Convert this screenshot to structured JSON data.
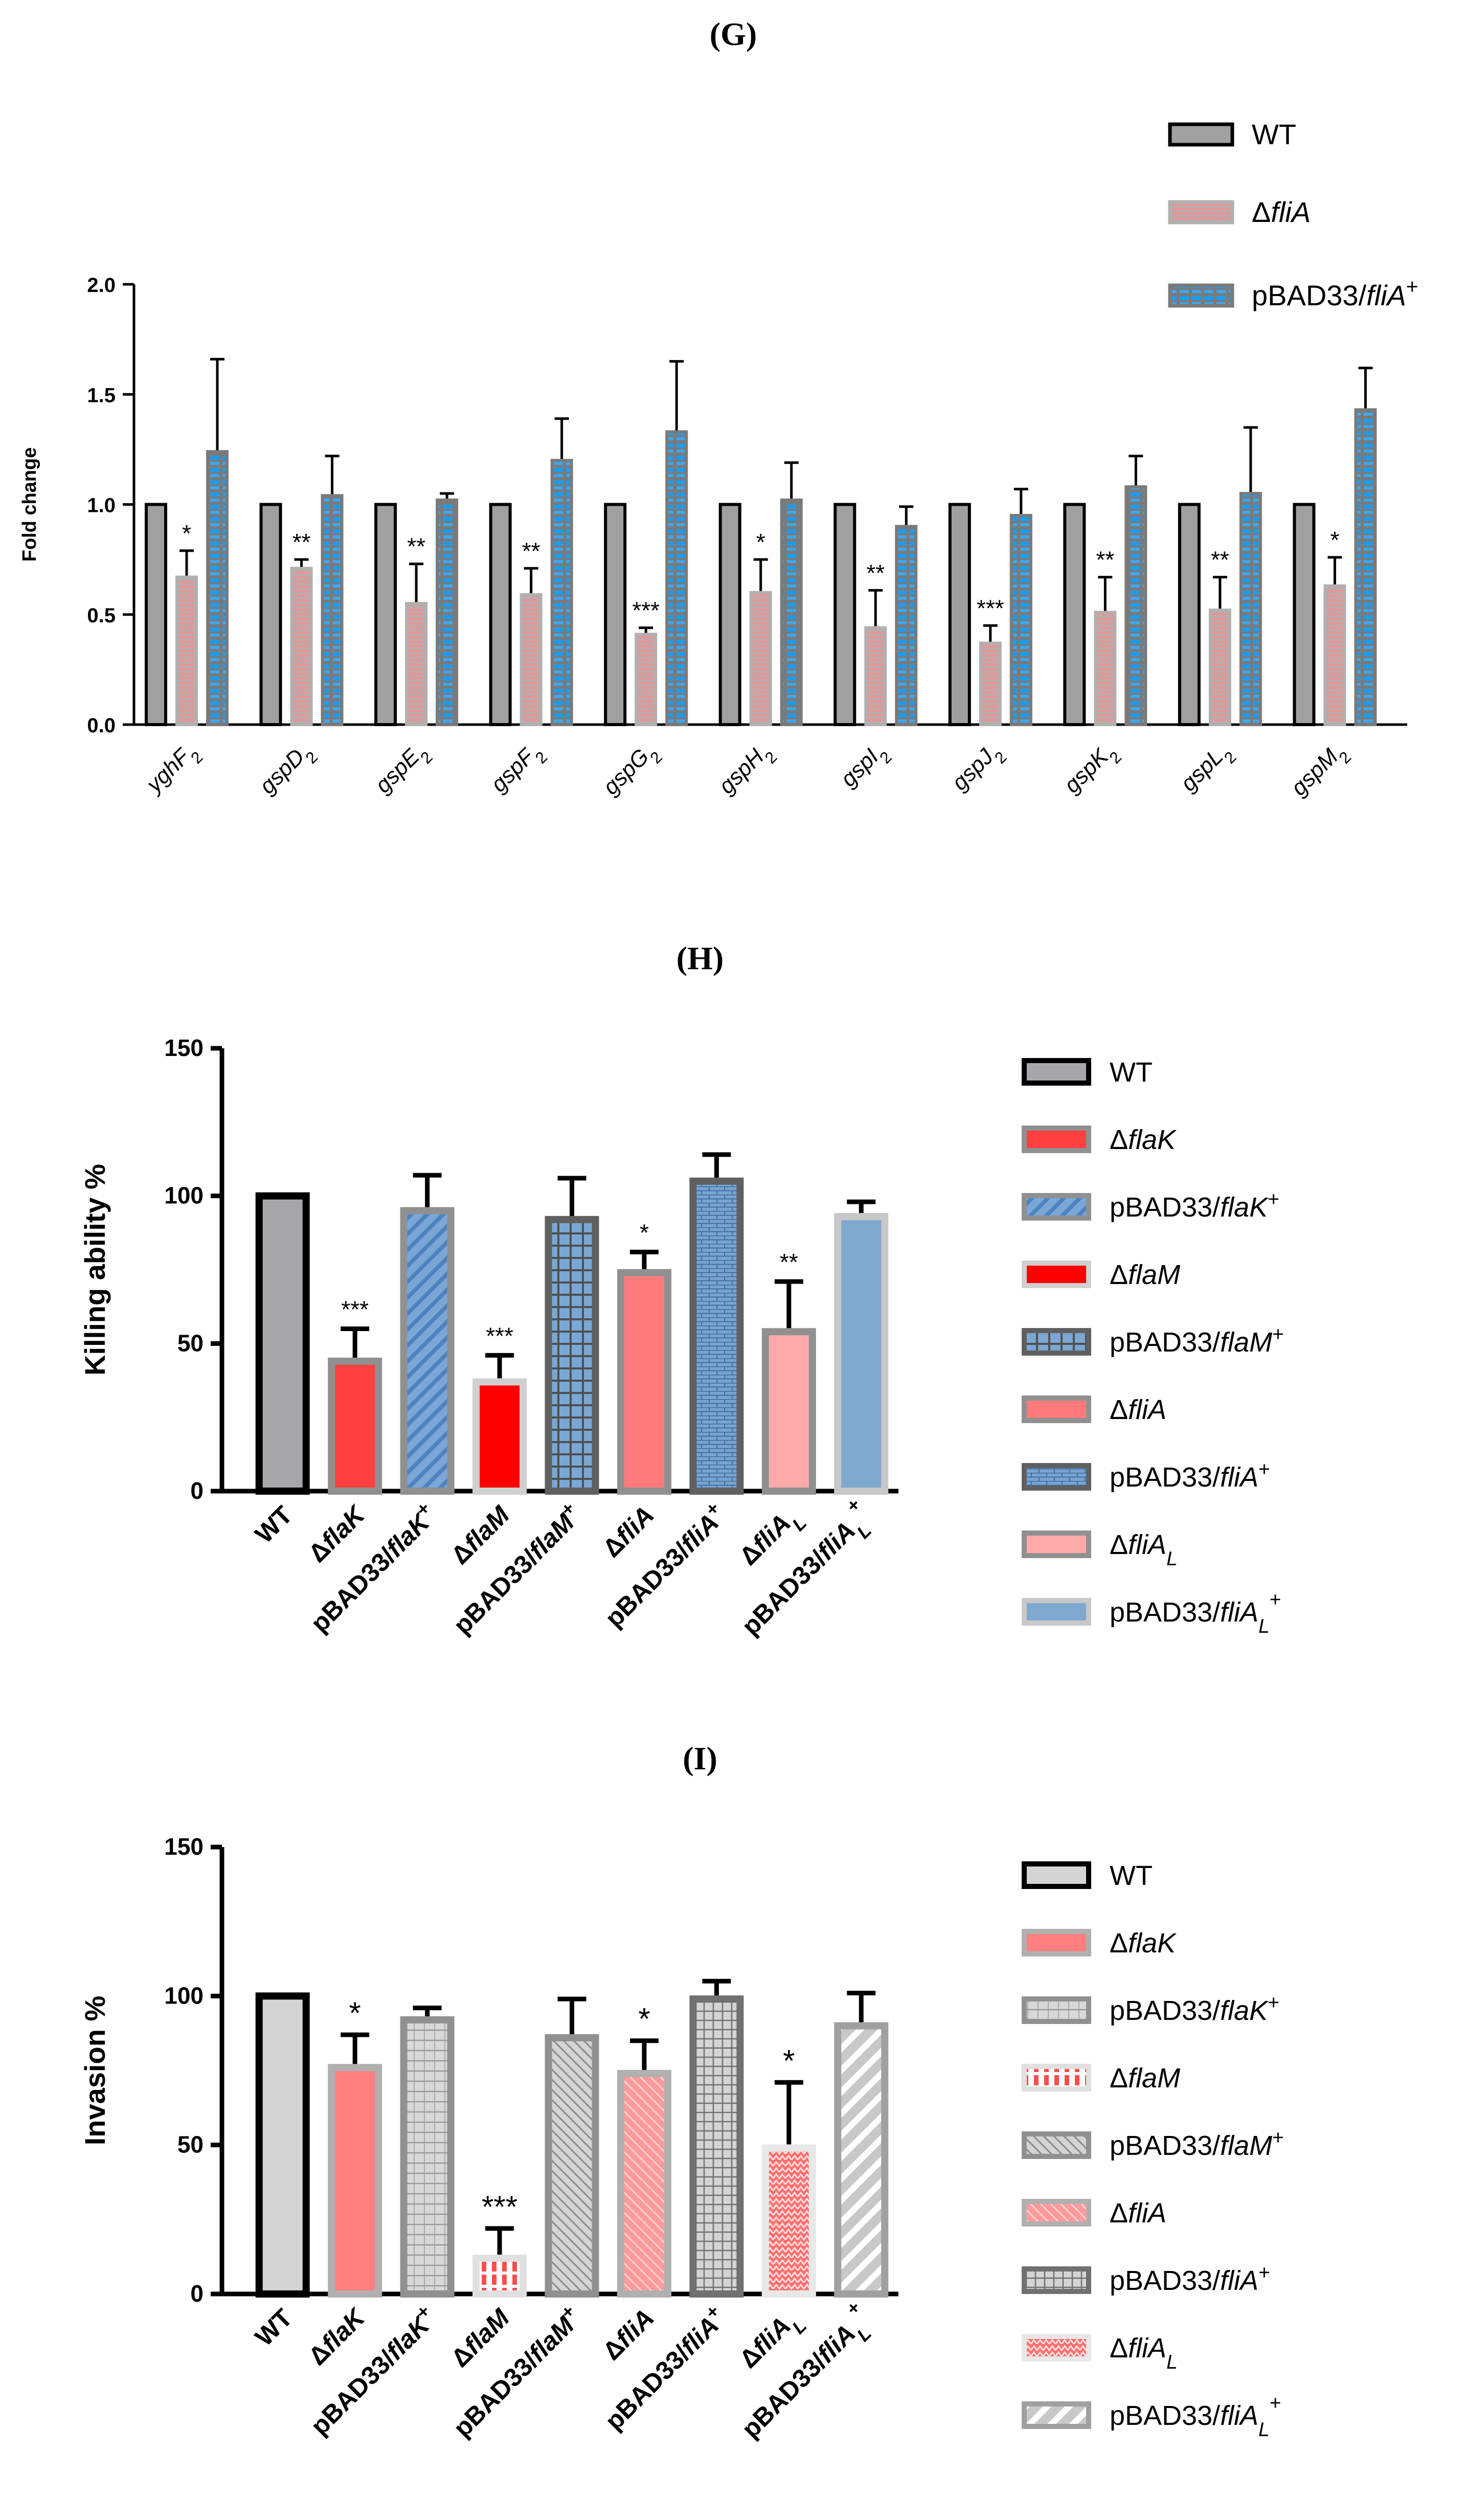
{
  "panels": [
    {
      "id": "G",
      "label": "(G)",
      "legend": [
        {
          "name": "WT",
          "fill": "#a0a0a0",
          "stroke": "#000000",
          "pattern": "none"
        },
        {
          "name": "ΔfliA",
          "fill": "#b0b0b0",
          "stroke": "#b0b0b0",
          "pattern": "zig-pink"
        },
        {
          "name": "pBAD33/fliA+",
          "fill": "#7a7a7a",
          "stroke": "#7a7a7a",
          "pattern": "dash-blue"
        }
      ]
    },
    {
      "id": "H",
      "label": "(H)",
      "legend": [
        {
          "name": "WT",
          "fill": "#a6a6ab",
          "stroke": "#000000",
          "pattern": "none"
        },
        {
          "name": "ΔflaK",
          "fill": "#ff4040",
          "stroke": "#909090",
          "pattern": "none"
        },
        {
          "name": "pBAD33/flaK+",
          "fill": "#7ba7d6",
          "stroke": "#909090",
          "pattern": "diag"
        },
        {
          "name": "ΔflaM",
          "fill": "#ff0000",
          "stroke": "#d0d0d0",
          "pattern": "none"
        },
        {
          "name": "pBAD33/flaM+",
          "fill": "#7aa7d4",
          "stroke": "#606060",
          "pattern": "grid"
        },
        {
          "name": "ΔfliA",
          "fill": "#ff7b7b",
          "stroke": "#909090",
          "pattern": "none"
        },
        {
          "name": "pBAD33/fliA+",
          "fill": "#7aa3d0",
          "stroke": "#606060",
          "pattern": "brick"
        },
        {
          "name": "ΔfliAL",
          "fill": "#ffaaaa",
          "stroke": "#909090",
          "pattern": "none"
        },
        {
          "name": "pBAD33/fliAL+",
          "fill": "#7fa8cf",
          "stroke": "#c8c8c8",
          "pattern": "none"
        }
      ]
    },
    {
      "id": "I",
      "label": "(I)",
      "legend": [
        {
          "name": "WT",
          "fill": "#d4d4d4",
          "stroke": "#000000",
          "pattern": "none"
        },
        {
          "name": "ΔflaK",
          "fill": "#ff8080",
          "stroke": "#b0b0b0",
          "pattern": "none"
        },
        {
          "name": "pBAD33/flaK+",
          "fill": "#d8d8d8",
          "stroke": "#909090",
          "pattern": "hlines"
        },
        {
          "name": "ΔflaM",
          "fill": "#ff4d4d",
          "stroke": "#e0e0e0",
          "pattern": "vdash"
        },
        {
          "name": "pBAD33/flaM+",
          "fill": "#d4d4d4",
          "stroke": "#909090",
          "pattern": "diag-gray"
        },
        {
          "name": "ΔfliA",
          "fill": "#ff9a9a",
          "stroke": "#b0b0b0",
          "pattern": "diag-white"
        },
        {
          "name": "pBAD33/fliA+",
          "fill": "#d4d4d4",
          "stroke": "#707070",
          "pattern": "grid-gray"
        },
        {
          "name": "ΔfliAL",
          "fill": "#ff7070",
          "stroke": "#e8e8e8",
          "pattern": "zig-white"
        },
        {
          "name": "pBAD33/fliAL+",
          "fill": "#c8c8c8",
          "stroke": "#a0a0a0",
          "pattern": "diag-wide"
        }
      ]
    }
  ],
  "chart_data": [
    {
      "type": "bar",
      "title": "(G)",
      "xlabel": "",
      "ylabel": "Fold change",
      "ylim": [
        0,
        2.0
      ],
      "yticks": [
        "0.0",
        "0.5",
        "1.0",
        "1.5",
        "2.0"
      ],
      "categories": [
        "yghF2",
        "gspD2",
        "gspE2",
        "gspF2",
        "gspG2",
        "gspH2",
        "gspI2",
        "gspJ2",
        "gspK2",
        "gspL2",
        "gspM2"
      ],
      "series": [
        {
          "name": "WT",
          "values": [
            1.0,
            1.0,
            1.0,
            1.0,
            1.0,
            1.0,
            1.0,
            1.0,
            1.0,
            1.0,
            1.0
          ],
          "errors": [
            0,
            0,
            0,
            0,
            0,
            0,
            0,
            0,
            0,
            0,
            0
          ]
        },
        {
          "name": "ΔfliA",
          "values": [
            0.67,
            0.71,
            0.55,
            0.59,
            0.41,
            0.6,
            0.44,
            0.37,
            0.51,
            0.52,
            0.63
          ],
          "errors": [
            0.12,
            0.04,
            0.18,
            0.12,
            0.03,
            0.15,
            0.17,
            0.08,
            0.16,
            0.15,
            0.13
          ],
          "significance": [
            "*",
            "**",
            "**",
            "**",
            "***",
            "*",
            "**",
            "***",
            "**",
            "**",
            "*"
          ]
        },
        {
          "name": "pBAD33/fliA+",
          "values": [
            1.24,
            1.04,
            1.02,
            1.2,
            1.33,
            1.02,
            0.9,
            0.95,
            1.08,
            1.05,
            1.43
          ],
          "errors": [
            0.42,
            0.18,
            0.03,
            0.19,
            0.32,
            0.17,
            0.09,
            0.12,
            0.14,
            0.3,
            0.19
          ]
        }
      ]
    },
    {
      "type": "bar",
      "title": "(H)",
      "xlabel": "",
      "ylabel": "Killing ability %",
      "ylim": [
        0,
        150
      ],
      "yticks": [
        "0",
        "50",
        "100",
        "150"
      ],
      "categories": [
        "WT",
        "ΔflaK",
        "pBAD33/flaK+",
        "ΔflaM",
        "pBAD33/flaM+",
        "ΔfliA",
        "pBAD33/fliA+",
        "ΔfliAL",
        "pBAD33/fliAL+"
      ],
      "values": [
        100,
        44,
        95,
        37,
        92,
        74,
        105,
        54,
        93
      ],
      "errors": [
        0,
        11,
        12,
        9,
        14,
        7,
        9,
        17,
        5
      ],
      "significance": [
        "",
        "***",
        "",
        "***",
        "",
        "*",
        "",
        "**",
        ""
      ]
    },
    {
      "type": "bar",
      "title": "(I)",
      "xlabel": "",
      "ylabel": "Invasion %",
      "ylim": [
        0,
        150
      ],
      "yticks": [
        "0",
        "50",
        "100",
        "150"
      ],
      "categories": [
        "WT",
        "ΔflaK",
        "pBAD33/flaK+",
        "ΔflaM",
        "pBAD33/flaM+",
        "ΔfliA",
        "pBAD33/fliA+",
        "ΔfliAL",
        "pBAD33/fliAL+"
      ],
      "values": [
        100,
        76,
        92,
        12,
        86,
        74,
        99,
        49,
        90
      ],
      "errors": [
        0,
        11,
        4,
        10,
        13,
        11,
        6,
        22,
        11
      ],
      "significance": [
        "",
        "*",
        "",
        "***",
        "",
        "*",
        "",
        "*",
        ""
      ]
    }
  ]
}
